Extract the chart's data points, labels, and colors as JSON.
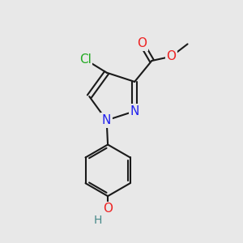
{
  "bg_color": "#e8e8e8",
  "bond_color": "#1a1a1a",
  "bond_width": 1.5,
  "atom_colors": {
    "N": "#2222ee",
    "O": "#ee2222",
    "Cl": "#22aa22",
    "H": "#448888",
    "C": "#1a1a1a"
  },
  "font_size": 11
}
